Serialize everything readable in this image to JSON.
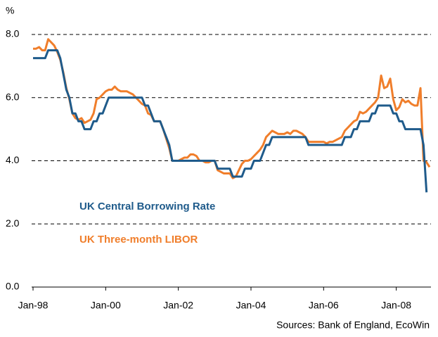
{
  "chart_data": {
    "type": "line",
    "y_unit_label": "%",
    "source": "Sources: Bank of England, EcoWin",
    "x": [
      "Jan-98",
      "Feb-98",
      "Mar-98",
      "Apr-98",
      "May-98",
      "Jun-98",
      "Jul-98",
      "Aug-98",
      "Sep-98",
      "Oct-98",
      "Nov-98",
      "Dec-98",
      "Jan-99",
      "Feb-99",
      "Mar-99",
      "Apr-99",
      "May-99",
      "Jun-99",
      "Jul-99",
      "Aug-99",
      "Sep-99",
      "Oct-99",
      "Nov-99",
      "Dec-99",
      "Jan-00",
      "Feb-00",
      "Mar-00",
      "Apr-00",
      "May-00",
      "Jun-00",
      "Jul-00",
      "Aug-00",
      "Sep-00",
      "Oct-00",
      "Nov-00",
      "Dec-00",
      "Jan-01",
      "Feb-01",
      "Mar-01",
      "Apr-01",
      "May-01",
      "Jun-01",
      "Jul-01",
      "Aug-01",
      "Sep-01",
      "Oct-01",
      "Nov-01",
      "Dec-01",
      "Jan-02",
      "Feb-02",
      "Mar-02",
      "Apr-02",
      "May-02",
      "Jun-02",
      "Jul-02",
      "Aug-02",
      "Sep-02",
      "Oct-02",
      "Nov-02",
      "Dec-02",
      "Jan-03",
      "Feb-03",
      "Mar-03",
      "Apr-03",
      "May-03",
      "Jun-03",
      "Jul-03",
      "Aug-03",
      "Sep-03",
      "Oct-03",
      "Nov-03",
      "Dec-03",
      "Jan-04",
      "Feb-04",
      "Mar-04",
      "Apr-04",
      "May-04",
      "Jun-04",
      "Jul-04",
      "Aug-04",
      "Sep-04",
      "Oct-04",
      "Nov-04",
      "Dec-04",
      "Jan-05",
      "Feb-05",
      "Mar-05",
      "Apr-05",
      "May-05",
      "Jun-05",
      "Jul-05",
      "Aug-05",
      "Sep-05",
      "Oct-05",
      "Nov-05",
      "Dec-05",
      "Jan-06",
      "Feb-06",
      "Mar-06",
      "Apr-06",
      "May-06",
      "Jun-06",
      "Jul-06",
      "Aug-06",
      "Sep-06",
      "Oct-06",
      "Nov-06",
      "Dec-06",
      "Jan-07",
      "Feb-07",
      "Mar-07",
      "Apr-07",
      "May-07",
      "Jun-07",
      "Jul-07",
      "Aug-07",
      "Sep-07",
      "Oct-07",
      "Nov-07",
      "Dec-07",
      "Jan-08",
      "Feb-08",
      "Mar-08",
      "Apr-08",
      "May-08",
      "Jun-08",
      "Jul-08",
      "Aug-08",
      "Sep-08",
      "Oct-08",
      "Nov-08",
      "Dec-08"
    ],
    "series": [
      {
        "name": "UK Central Borrowing Rate",
        "color": "#1f5b8b",
        "values": [
          7.25,
          7.25,
          7.25,
          7.25,
          7.25,
          7.5,
          7.5,
          7.5,
          7.5,
          7.25,
          6.75,
          6.25,
          6.0,
          5.5,
          5.5,
          5.25,
          5.25,
          5.0,
          5.0,
          5.0,
          5.25,
          5.25,
          5.5,
          5.5,
          5.75,
          6.0,
          6.0,
          6.0,
          6.0,
          6.0,
          6.0,
          6.0,
          6.0,
          6.0,
          6.0,
          6.0,
          6.0,
          5.75,
          5.75,
          5.5,
          5.25,
          5.25,
          5.25,
          5.0,
          4.75,
          4.5,
          4.0,
          4.0,
          4.0,
          4.0,
          4.0,
          4.0,
          4.0,
          4.0,
          4.0,
          4.0,
          4.0,
          4.0,
          4.0,
          4.0,
          4.0,
          3.75,
          3.75,
          3.75,
          3.75,
          3.75,
          3.5,
          3.5,
          3.5,
          3.5,
          3.75,
          3.75,
          3.75,
          4.0,
          4.0,
          4.0,
          4.25,
          4.5,
          4.5,
          4.75,
          4.75,
          4.75,
          4.75,
          4.75,
          4.75,
          4.75,
          4.75,
          4.75,
          4.75,
          4.75,
          4.75,
          4.5,
          4.5,
          4.5,
          4.5,
          4.5,
          4.5,
          4.5,
          4.5,
          4.5,
          4.5,
          4.5,
          4.5,
          4.75,
          4.75,
          4.75,
          5.0,
          5.0,
          5.25,
          5.25,
          5.25,
          5.25,
          5.5,
          5.5,
          5.75,
          5.75,
          5.75,
          5.75,
          5.75,
          5.5,
          5.5,
          5.25,
          5.25,
          5.0,
          5.0,
          5.0,
          5.0,
          5.0,
          5.0,
          4.5,
          3.0,
          null
        ]
      },
      {
        "name": "UK Three-month LIBOR",
        "color": "#f07e2b",
        "values": [
          7.55,
          7.55,
          7.6,
          7.5,
          7.5,
          7.85,
          7.75,
          7.65,
          7.45,
          7.2,
          6.8,
          6.3,
          5.95,
          5.5,
          5.35,
          5.3,
          5.35,
          5.2,
          5.25,
          5.3,
          5.5,
          5.95,
          6.0,
          6.1,
          6.2,
          6.25,
          6.25,
          6.35,
          6.25,
          6.2,
          6.2,
          6.2,
          6.15,
          6.1,
          6.0,
          5.9,
          5.8,
          5.75,
          5.5,
          5.45,
          5.25,
          5.25,
          5.25,
          5.0,
          4.7,
          4.4,
          4.0,
          4.0,
          4.0,
          4.05,
          4.1,
          4.1,
          4.2,
          4.2,
          4.15,
          4.0,
          4.0,
          3.95,
          3.95,
          4.0,
          4.0,
          3.7,
          3.65,
          3.6,
          3.6,
          3.6,
          3.45,
          3.5,
          3.7,
          3.9,
          4.0,
          4.0,
          4.05,
          4.15,
          4.25,
          4.35,
          4.5,
          4.75,
          4.85,
          4.95,
          4.9,
          4.85,
          4.85,
          4.85,
          4.9,
          4.85,
          4.95,
          4.95,
          4.9,
          4.85,
          4.75,
          4.6,
          4.6,
          4.6,
          4.6,
          4.6,
          4.6,
          4.55,
          4.6,
          4.6,
          4.65,
          4.7,
          4.75,
          4.95,
          5.05,
          5.15,
          5.25,
          5.3,
          5.55,
          5.5,
          5.55,
          5.65,
          5.75,
          5.85,
          6.0,
          6.7,
          6.3,
          6.35,
          6.6,
          5.95,
          5.6,
          5.7,
          5.95,
          5.85,
          5.9,
          5.8,
          5.75,
          5.75,
          6.3,
          4.0,
          3.95,
          3.8
        ]
      }
    ],
    "xlim": [
      "Jan-98",
      "Dec-08"
    ],
    "xticks": [
      "Jan-98",
      "Jan-00",
      "Jan-02",
      "Jan-04",
      "Jan-06",
      "Jan-08"
    ],
    "ylim": [
      0,
      8
    ],
    "yticks": [
      {
        "value": 0,
        "label": "0.0"
      },
      {
        "value": 2,
        "label": "2.0"
      },
      {
        "value": 4,
        "label": "4.0"
      },
      {
        "value": 6,
        "label": "6.0"
      },
      {
        "value": 8,
        "label": "8.0"
      }
    ],
    "grid": true
  }
}
